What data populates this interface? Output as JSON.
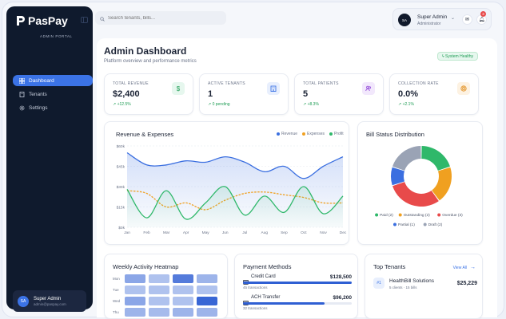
{
  "brand": {
    "name": "PasPay",
    "subtitle": "ADMIN PORTAL"
  },
  "sidebar": {
    "items": [
      {
        "label": "Dashboard",
        "icon": "grid-icon",
        "active": true
      },
      {
        "label": "Tenants",
        "icon": "building-icon",
        "active": false
      },
      {
        "label": "Settings",
        "icon": "gear-icon",
        "active": false
      }
    ],
    "user": {
      "initials": "SA",
      "name": "Super Admin",
      "email": "admin@paspay.com"
    }
  },
  "topbar": {
    "search_placeholder": "Search tenants, bills...",
    "user": {
      "initials": "SA",
      "name": "Super Admin",
      "role": "Administrator"
    },
    "notifications_count": "3"
  },
  "page": {
    "title": "Admin Dashboard",
    "subtitle": "Platform overview and performance metrics",
    "status": "ϟ System Healthy"
  },
  "stats": [
    {
      "label": "TOTAL REVENUE",
      "value": "$2,400",
      "change": "↗ +12.5%",
      "icon": "dollar-icon",
      "color": "#1f9d55",
      "bg": "#e6f7ee"
    },
    {
      "label": "ACTIVE TENANTS",
      "value": "1",
      "change": "↗ 0 pending",
      "icon": "building-icon",
      "color": "#3b73e6",
      "bg": "#e8effd"
    },
    {
      "label": "TOTAL PATIENTS",
      "value": "5",
      "change": "↗ +8.3%",
      "icon": "users-icon",
      "color": "#8b3fd6",
      "bg": "#f2e8fc"
    },
    {
      "label": "COLLECTION RATE",
      "value": "0.0%",
      "change": "↗ +2.1%",
      "icon": "target-icon",
      "color": "#e08a14",
      "bg": "#fdf2e2"
    }
  ],
  "revenue_chart": {
    "title": "Revenue & Expenses",
    "legend": [
      {
        "name": "Revenue",
        "color": "#3b6fe0"
      },
      {
        "name": "Expenses",
        "color": "#f0a020"
      },
      {
        "name": "Profit",
        "color": "#2fb86a"
      }
    ]
  },
  "bill_chart": {
    "title": "Bill Status Distribution"
  },
  "heatmap": {
    "title": "Weekly Activity Heatmap",
    "rows": [
      "Mon",
      "Tue",
      "Wed",
      "Thu"
    ],
    "levels": [
      [
        0.5,
        0.3,
        0.8,
        0.4
      ],
      [
        0.3,
        0.3,
        0.3,
        0.3
      ],
      [
        0.5,
        0.3,
        0.3,
        0.95
      ],
      [
        0.4,
        0.35,
        0.4,
        0.4
      ]
    ]
  },
  "payments": {
    "title": "Payment Methods",
    "items": [
      {
        "name": "Credit Card",
        "amount": "$128,500",
        "count": "45 transactions",
        "share": 1.0
      },
      {
        "name": "ACH Transfer",
        "amount": "$96,200",
        "count": "32 transactions",
        "share": 0.75
      }
    ]
  },
  "tenants": {
    "title": "Top Tenants",
    "view_all": "View All",
    "items": [
      {
        "rank": "#1",
        "name": "HealthBill Solutions",
        "meta": "5 clients · 15 bills",
        "amount": "$25,229"
      }
    ]
  },
  "chart_data": [
    {
      "type": "line",
      "title": "Revenue & Expenses",
      "categories": [
        "Jan",
        "Feb",
        "Mar",
        "Apr",
        "May",
        "Jun",
        "Jul",
        "Aug",
        "Sep",
        "Oct",
        "Nov",
        "Dec"
      ],
      "y_tick_labels": [
        "$0k",
        "$15k",
        "$30k",
        "$45k",
        "$60k"
      ],
      "ylim": [
        0,
        60
      ],
      "grid": true,
      "legend_position": "top-right",
      "series": [
        {
          "name": "Revenue",
          "values": [
            55,
            46,
            46,
            49,
            48,
            52,
            48,
            41,
            45,
            36,
            45,
            52
          ]
        },
        {
          "name": "Expenses",
          "values": [
            27,
            25,
            15,
            18,
            13,
            20,
            25,
            26,
            24,
            22,
            18,
            18
          ]
        },
        {
          "name": "Profit",
          "values": [
            28,
            7,
            27,
            6,
            18,
            30,
            9,
            23,
            11,
            30,
            10,
            23
          ]
        }
      ]
    },
    {
      "type": "pie",
      "title": "Bill Status Distribution",
      "donut": true,
      "slices": [
        {
          "label": "Paid",
          "value": 2,
          "color": "#2fb86a"
        },
        {
          "label": "Outstanding",
          "value": 2,
          "color": "#f0a020"
        },
        {
          "label": "Overdue",
          "value": 3,
          "color": "#e84a4a"
        },
        {
          "label": "Partial",
          "value": 1,
          "color": "#3b6fe0"
        },
        {
          "label": "Draft",
          "value": 2,
          "color": "#9aa3b5"
        }
      ],
      "legend": [
        "Paid (2)",
        "Outstanding (2)",
        "Overdue (3)",
        "Partial (1)",
        "Draft (2)"
      ]
    }
  ]
}
